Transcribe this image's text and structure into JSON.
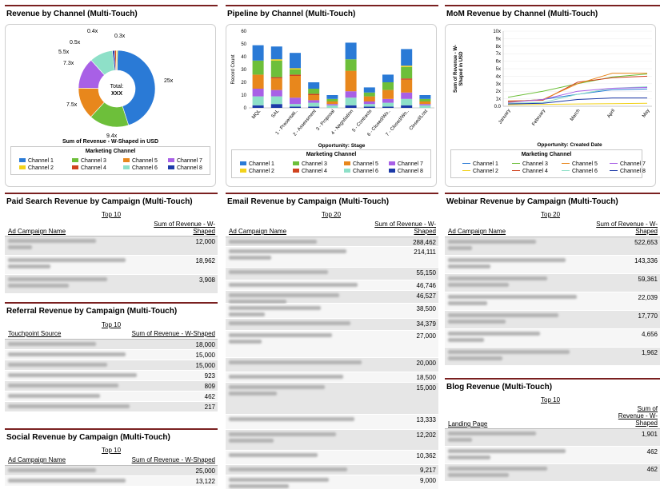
{
  "panels": {
    "rev_channel": {
      "title": "Revenue by Channel (Multi-Touch)"
    },
    "pipeline": {
      "title": "Pipeline by Channel (Multi-Touch)"
    },
    "mom": {
      "title": "MoM Revenue by Channel (Multi-Touch)"
    },
    "paid": {
      "title": "Paid Search Revenue by Campaign (Multi-Touch)"
    },
    "referral": {
      "title": "Referral Revenue by Campaign (Multi-Touch)"
    },
    "social": {
      "title": "Social Revenue by Campaign (Multi-Touch)"
    },
    "email": {
      "title": "Email Revenue by Campaign (Multi-Touch)"
    },
    "webinar": {
      "title": "Webinar Revenue by Campaign (Multi-Touch)"
    },
    "blog": {
      "title": "Blog Revenue (Multi-Touch)"
    }
  },
  "legend": {
    "title": "Marketing Channel",
    "channels": [
      "Channel 1",
      "Channel 2",
      "Channel 3",
      "Channel 4",
      "Channel 5",
      "Channel 6",
      "Channel 7",
      "Channel 8"
    ],
    "colors": [
      "#2a7ad6",
      "#f2d21b",
      "#6dbf3a",
      "#d0431f",
      "#e8871c",
      "#8ee0c8",
      "#a860e6",
      "#1c3aa8"
    ]
  },
  "chart_data": [
    {
      "type": "pie",
      "labels": [
        "Channel 1",
        "Channel 2",
        "Channel 3",
        "Channel 4",
        "Channel 5",
        "Channel 6",
        "Channel 7",
        "Channel 8"
      ],
      "values": [
        25,
        0.3,
        9.4,
        0.4,
        7.5,
        5.5,
        7.3,
        0.5
      ],
      "slice_labels": [
        "25x",
        "0.3x",
        "9.4x",
        "0.4x",
        "7.5x",
        "5.5x",
        "7.3x",
        "0.5x"
      ],
      "center_line1": "Total:",
      "center_line2": "XXX",
      "caption": "Sum of Revenue - W-Shaped in USD"
    },
    {
      "type": "bar",
      "stacked": true,
      "categories": [
        "MQL",
        "SAL",
        "1 - Presentati..",
        "2 - Assessment",
        "3 - Proposal",
        "4 - Negotiation",
        "5 - Contracts",
        "6 - Closed/Wo..",
        "7 - Closed/Wo..",
        "Closed/Lost"
      ],
      "series": [
        {
          "name": "Channel 1",
          "values": [
            12,
            10,
            12,
            5,
            3,
            13,
            4,
            6,
            13,
            3
          ]
        },
        {
          "name": "Channel 2",
          "values": [
            0,
            1,
            1,
            0,
            0,
            0,
            0,
            0,
            1,
            0
          ]
        },
        {
          "name": "Channel 3",
          "values": [
            11,
            13,
            4,
            4,
            2,
            9,
            3,
            6,
            9,
            2
          ]
        },
        {
          "name": "Channel 4",
          "values": [
            0,
            1,
            1,
            1,
            0,
            0,
            0,
            0,
            1,
            0
          ]
        },
        {
          "name": "Channel 5",
          "values": [
            11,
            9,
            17,
            4,
            2,
            16,
            4,
            7,
            10,
            2
          ]
        },
        {
          "name": "Channel 6",
          "values": [
            7,
            6,
            2,
            3,
            2,
            6,
            2,
            3,
            5,
            2
          ]
        },
        {
          "name": "Channel 7",
          "values": [
            6,
            5,
            5,
            2,
            1,
            5,
            2,
            3,
            5,
            1
          ]
        },
        {
          "name": "Channel 8",
          "values": [
            2,
            3,
            1,
            1,
            0,
            2,
            1,
            1,
            2,
            0
          ]
        }
      ],
      "ylabel": "Record Count",
      "xlabel": "Opportunity: Stage",
      "ylim": [
        0,
        60
      ],
      "yticks": [
        0,
        10,
        20,
        30,
        40,
        50,
        60
      ]
    },
    {
      "type": "line",
      "x": [
        "January",
        "February",
        "March",
        "April",
        "May"
      ],
      "series": [
        {
          "name": "Channel 1",
          "values": [
            0.6,
            0.9,
            1.6,
            2.2,
            2.3
          ]
        },
        {
          "name": "Channel 2",
          "values": [
            0.2,
            0.25,
            0.3,
            0.35,
            0.4
          ]
        },
        {
          "name": "Channel 3",
          "values": [
            1.2,
            2.0,
            3.0,
            3.9,
            4.3
          ]
        },
        {
          "name": "Channel 4",
          "values": [
            0.7,
            0.8,
            3.2,
            3.8,
            4.0
          ]
        },
        {
          "name": "Channel 5",
          "values": [
            0.6,
            0.9,
            3.0,
            4.4,
            4.4
          ]
        },
        {
          "name": "Channel 6",
          "values": [
            0.4,
            0.5,
            1.6,
            2.4,
            2.6
          ]
        },
        {
          "name": "Channel 7",
          "values": [
            0.5,
            0.9,
            2.0,
            2.4,
            2.5
          ]
        },
        {
          "name": "Channel 8",
          "values": [
            0.3,
            0.4,
            0.9,
            1.1,
            1.1
          ]
        }
      ],
      "ylabel": "Sum of Revenue - W-Shaped in USD",
      "xlabel": "Opportunity: Created Date",
      "ylim": [
        0,
        10
      ],
      "yticks": [
        "0.0",
        "1x",
        "2x",
        "3x",
        "4x",
        "5x",
        "6x",
        "7x",
        "8x",
        "9x",
        "10x"
      ]
    }
  ],
  "tables": {
    "paid": {
      "top": "Top 10",
      "col1": "Ad Campaign Name",
      "col2a": "Sum of Revenue - W-",
      "col2b": "Shaped",
      "values": [
        "12,000",
        "18,962",
        "3,908"
      ]
    },
    "referral": {
      "top": "Top 10",
      "col1": "Touchpoint Source",
      "col2": "Sum of Revenue - W-Shaped",
      "values": [
        "18,000",
        "15,000",
        "15,000",
        "923",
        "809",
        "462",
        "217"
      ]
    },
    "social": {
      "top": "Top 10",
      "col1": "Ad Campaign Name",
      "col2": "Sum of Revenue - W-Shaped",
      "values": [
        "25,000",
        "13,122"
      ]
    },
    "email": {
      "top": "Top 20",
      "col1": "Ad Campaign Name",
      "col2a": "Sum of Revenue - W-",
      "col2b": "Shaped",
      "values": [
        "288,462",
        "214,111",
        "55,150",
        "46,746",
        "46,527",
        "38,500",
        "34,379",
        "27,000",
        "20,000",
        "18,500",
        "15,000",
        "13,333",
        "12,202",
        "10,362",
        "9,217",
        "9,000"
      ]
    },
    "webinar": {
      "top": "Top 20",
      "col1": "Ad Campaign Name",
      "col2a": "Sum of Revenue - W-",
      "col2b": "Shaped",
      "values": [
        "522,653",
        "143,336",
        "59,361",
        "22,039",
        "17,770",
        "4,656",
        "1,962"
      ]
    },
    "blog": {
      "top": "Top 10",
      "col1": "Landing Page",
      "col2a": "Sum of",
      "col2b": "Revenue - W-",
      "col2c": "Shaped",
      "values": [
        "1,901",
        "462",
        "462"
      ]
    }
  }
}
